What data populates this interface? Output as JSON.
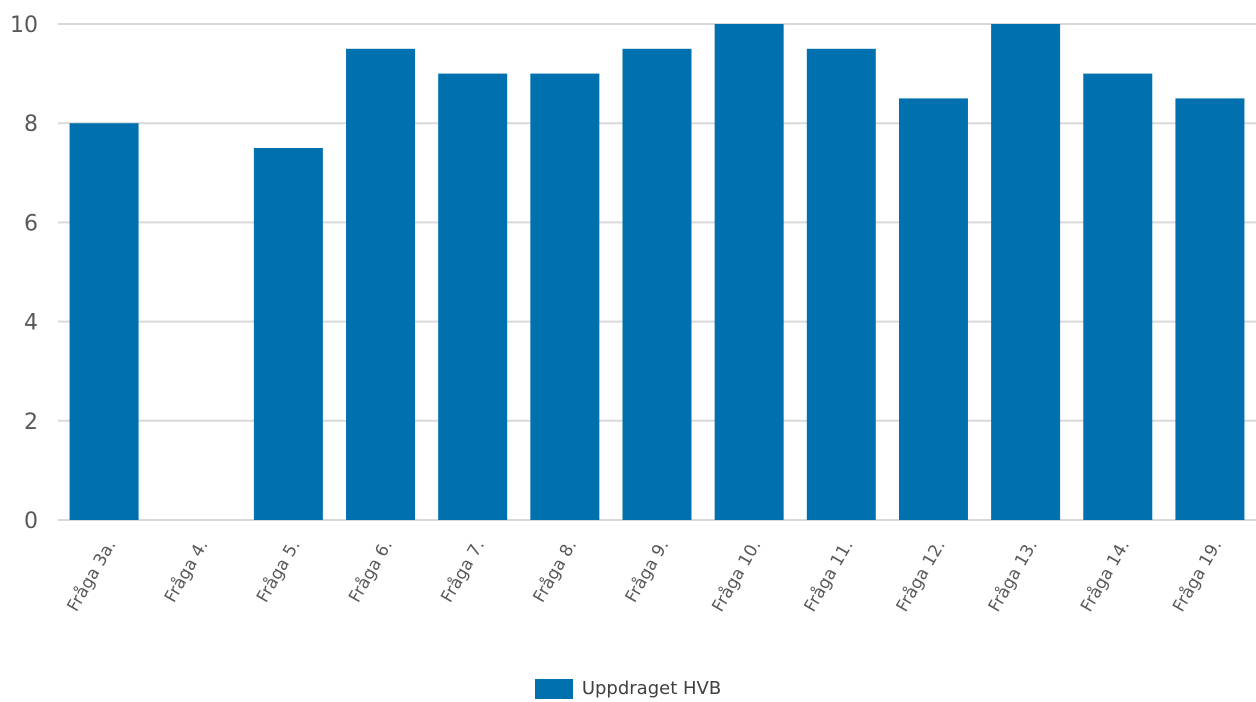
{
  "chart_data": {
    "type": "bar",
    "categories": [
      "Fråga 3a.",
      "Fråga 4.",
      "Fråga 5.",
      "Fråga 6.",
      "Fråga 7.",
      "Fråga 8.",
      "Fråga 9.",
      "Fråga 10.",
      "Fråga 11.",
      "Fråga 12.",
      "Fråga 13.",
      "Fråga 14.",
      "Fråga 19."
    ],
    "series": [
      {
        "name": "Uppdraget HVB",
        "values": [
          8,
          null,
          7.5,
          9.5,
          9,
          9,
          9.5,
          10,
          9.5,
          8.5,
          10,
          9,
          8.5
        ],
        "color": "#0070ae"
      }
    ],
    "yticks": [
      "0",
      "2",
      "4",
      "6",
      "8",
      "10"
    ],
    "ylim": [
      0,
      10
    ],
    "grid": true,
    "legend_position": "bottom",
    "title": "",
    "xlabel": "",
    "ylabel": ""
  }
}
